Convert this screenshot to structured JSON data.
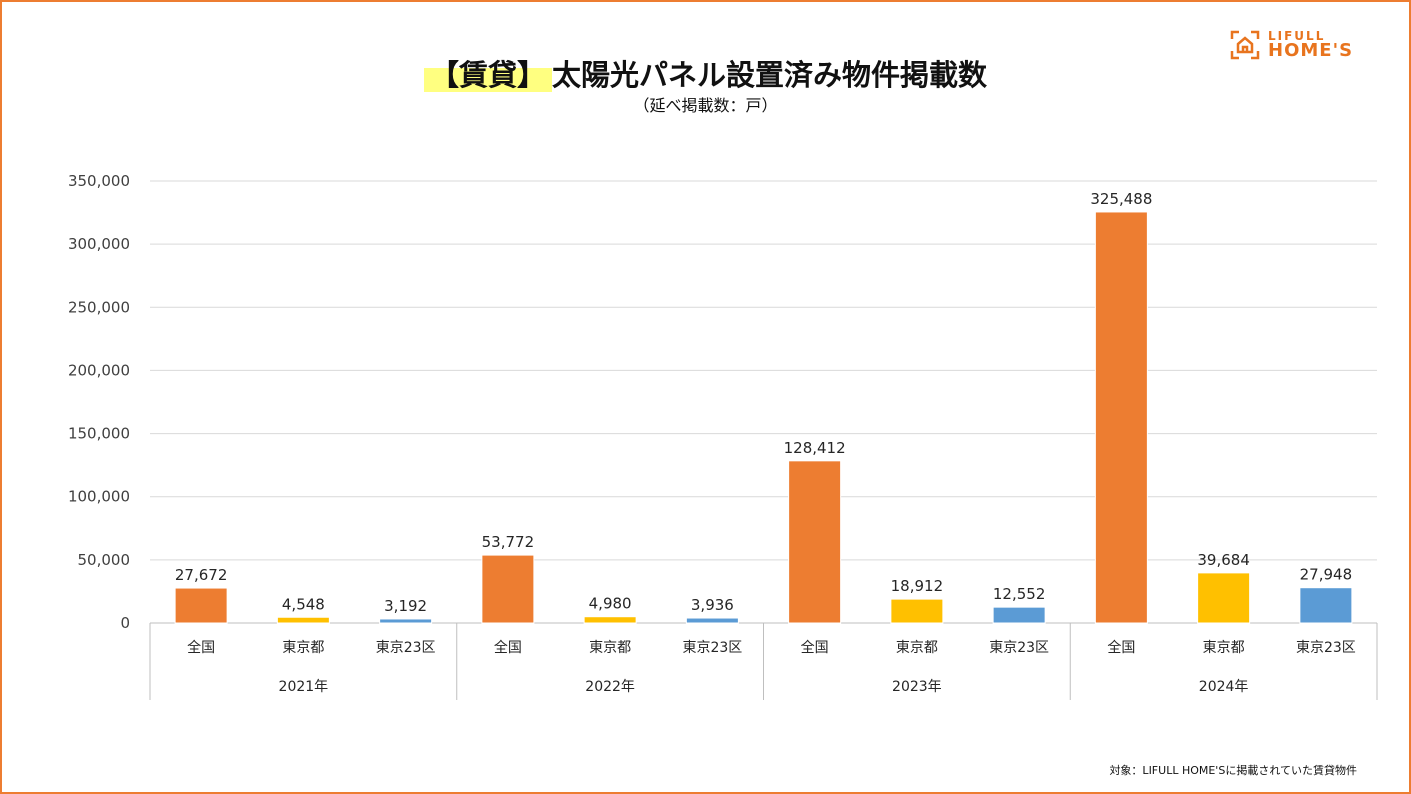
{
  "title_highlight": "【賃貸】",
  "title": "太陽光パネル設置済み物件掲載数",
  "subtitle": "（延べ掲載数：戸）",
  "logo": {
    "line1": "LIFULL",
    "line2": "HOME'S"
  },
  "footnote": "対象：LIFULL HOME'Sに掲載されていた賃貸物件",
  "colors": {
    "全国": "#ED7D31",
    "東京都": "#FFC000",
    "東京23区": "#5B9BD5",
    "frame": "#ED7D31"
  },
  "chart_data": {
    "type": "bar",
    "groups": [
      "2021年",
      "2022年",
      "2023年",
      "2024年"
    ],
    "categories": [
      "全国",
      "東京都",
      "東京23区"
    ],
    "series": [
      {
        "group": "2021年",
        "values": [
          27672,
          4548,
          3192
        ],
        "labels": [
          "27,672",
          "4,548",
          "3,192"
        ]
      },
      {
        "group": "2022年",
        "values": [
          53772,
          4980,
          3936
        ],
        "labels": [
          "53,772",
          "4,980",
          "3,936"
        ]
      },
      {
        "group": "2023年",
        "values": [
          128412,
          18912,
          12552
        ],
        "labels": [
          "128,412",
          "18,912",
          "12,552"
        ]
      },
      {
        "group": "2024年",
        "values": [
          325488,
          39684,
          27948
        ],
        "labels": [
          "325,488",
          "39,684",
          "27,948"
        ]
      }
    ],
    "ylim": [
      0,
      350000
    ],
    "yticks": [
      0,
      50000,
      100000,
      150000,
      200000,
      250000,
      300000,
      350000
    ],
    "ytick_labels": [
      "0",
      "50,000",
      "100,000",
      "150,000",
      "200,000",
      "250,000",
      "300,000",
      "350,000"
    ],
    "grid": true,
    "legend": "none"
  }
}
